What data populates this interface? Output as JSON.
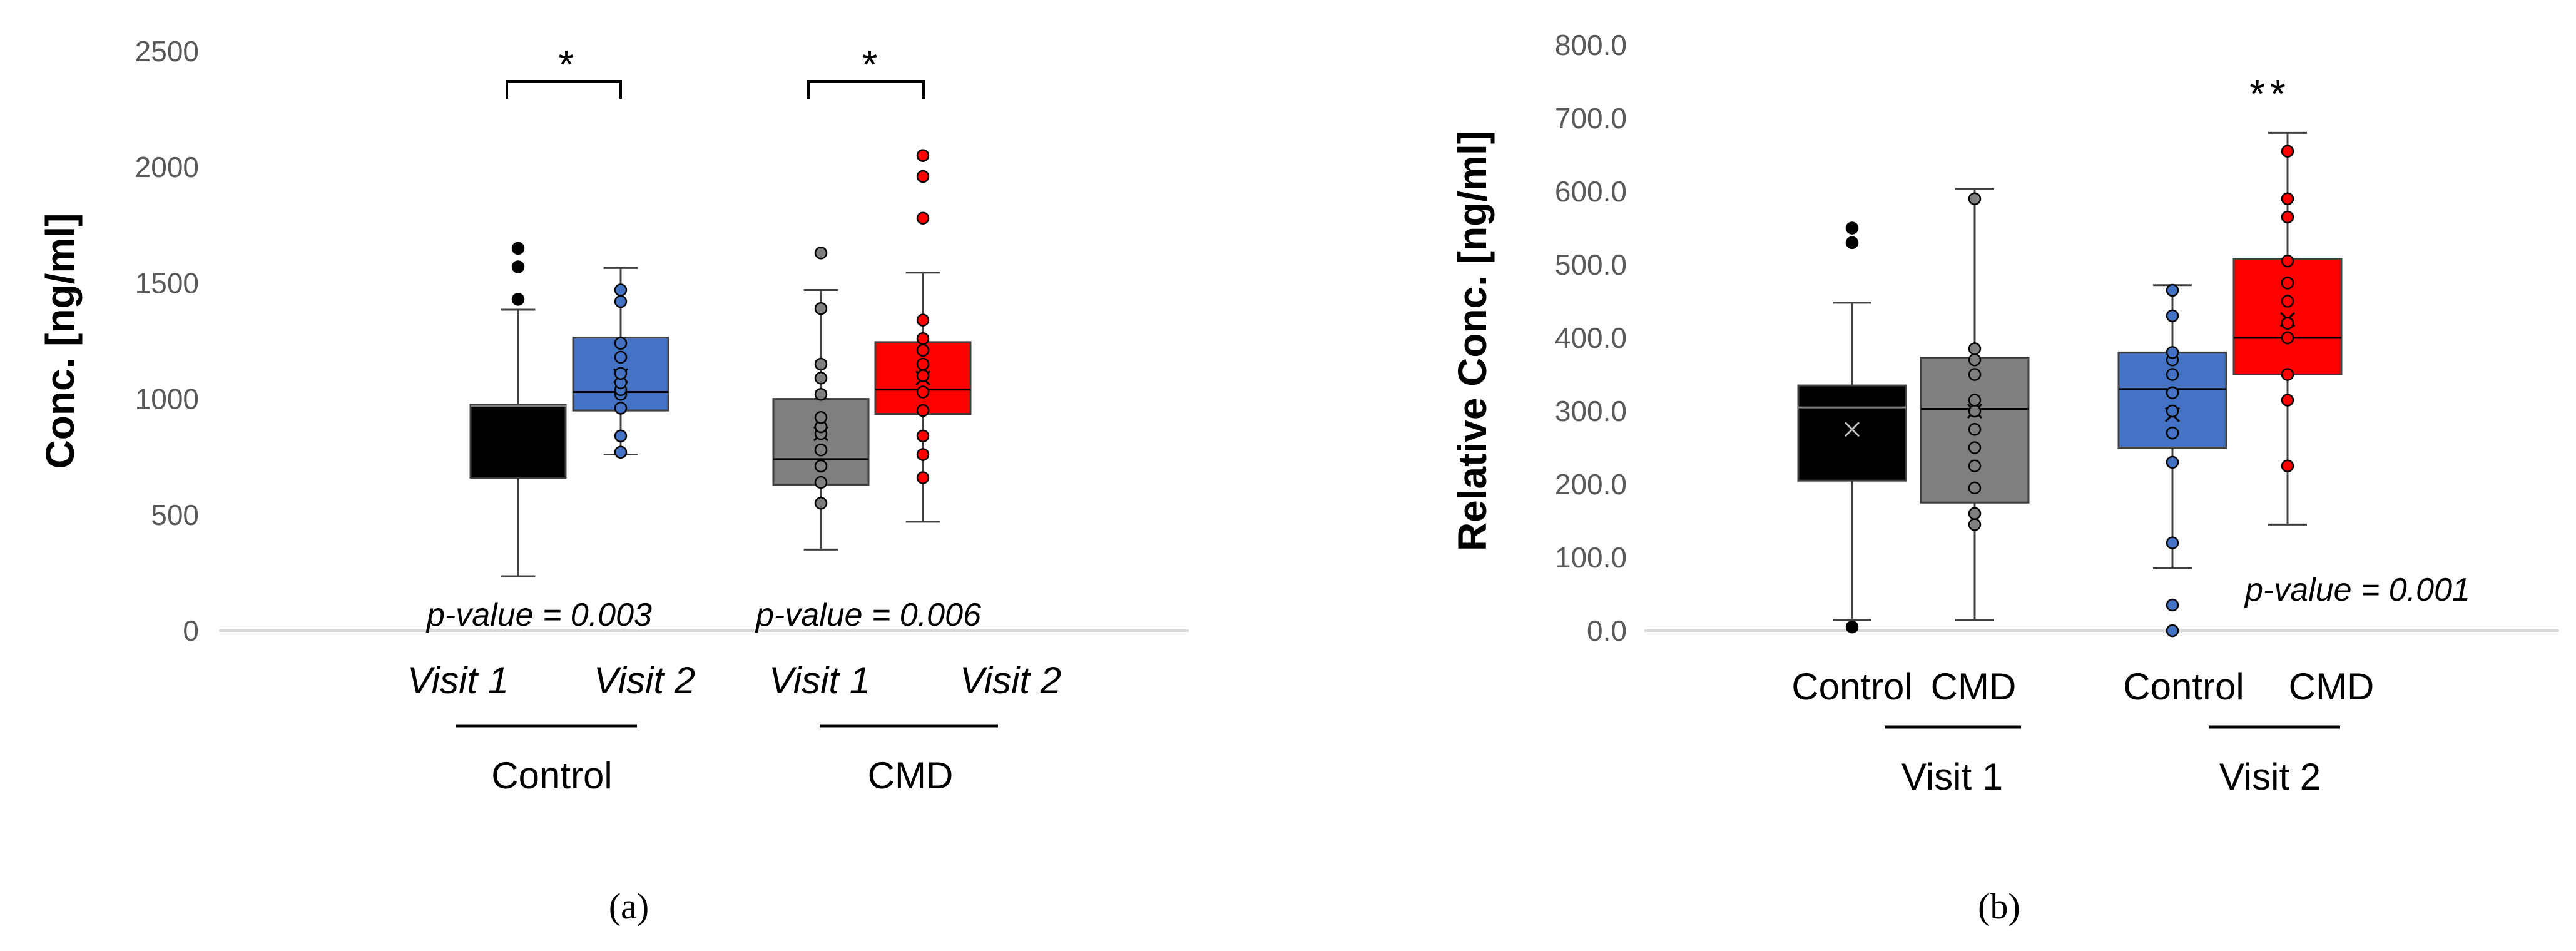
{
  "chart_data": [
    {
      "type": "box",
      "panel_label": "(a)",
      "ylabel": "Conc. [ng/ml]",
      "ylim": [
        0,
        2500
      ],
      "yticks": [
        "0",
        "500",
        "1000",
        "1500",
        "2000",
        "2500"
      ],
      "p_values": [
        "p-value = 0.003",
        "p-value = 0.006"
      ],
      "significance": [
        "*",
        "*"
      ],
      "groups": [
        {
          "label": "Control",
          "categories": [
            "Visit 1",
            "Visit 2"
          ]
        },
        {
          "label": "CMD",
          "categories": [
            "Visit 1",
            "Visit 2"
          ]
        }
      ],
      "series": [
        {
          "name": "Control Visit 1",
          "color": "#000000",
          "min": 235,
          "q1": 660,
          "median": 970,
          "q3": 975,
          "max": 1385,
          "mean": null,
          "outliers": [
            1430,
            1570,
            1650
          ],
          "points": []
        },
        {
          "name": "Control Visit 2",
          "color": "#4472C4",
          "min": 760,
          "q1": 950,
          "median": 1030,
          "q3": 1265,
          "max": 1565,
          "mean": 1100,
          "outliers": [],
          "points": [
            770,
            840,
            960,
            1020,
            1040,
            1070,
            1110,
            1180,
            1240,
            1420,
            1470
          ]
        },
        {
          "name": "CMD Visit 1",
          "color": "#7F7F7F",
          "min": 350,
          "q1": 630,
          "median": 740,
          "q3": 1000,
          "max": 1470,
          "mean": 850,
          "outliers": [
            1630
          ],
          "points": [
            550,
            640,
            710,
            780,
            850,
            880,
            920,
            1020,
            1090,
            1150,
            1390
          ]
        },
        {
          "name": "CMD Visit 2",
          "color": "#FF0000",
          "min": 470,
          "q1": 935,
          "median": 1040,
          "q3": 1245,
          "max": 1545,
          "mean": 1090,
          "outliers": [
            1780,
            1960,
            2050
          ],
          "points": [
            660,
            760,
            840,
            950,
            1030,
            1100,
            1150,
            1210,
            1260,
            1340
          ]
        }
      ]
    },
    {
      "type": "box",
      "panel_label": "(b)",
      "ylabel": "Relative Conc. [ng/ml]",
      "ylim": [
        0,
        800
      ],
      "yticks": [
        "0.0",
        "100.0",
        "200.0",
        "300.0",
        "400.0",
        "500.0",
        "600.0",
        "700.0",
        "800.0"
      ],
      "p_values": [
        "p-value = 0.001"
      ],
      "significance": [
        "**"
      ],
      "groups": [
        {
          "label": "Visit 1",
          "categories": [
            "Control",
            "CMD"
          ]
        },
        {
          "label": "Visit 2",
          "categories": [
            "Control",
            "CMD"
          ]
        }
      ],
      "series": [
        {
          "name": "Visit 1 Control",
          "color": "#000000",
          "min": 15,
          "q1": 205,
          "median": 305,
          "q3": 335,
          "max": 448,
          "mean": 275,
          "outliers": [
            5,
            530,
            550
          ],
          "points": []
        },
        {
          "name": "Visit 1 CMD",
          "color": "#7F7F7F",
          "min": 15,
          "q1": 175,
          "median": 303,
          "q3": 373,
          "max": 603,
          "mean": 300,
          "outliers": [],
          "points": [
            145,
            160,
            195,
            225,
            250,
            275,
            300,
            315,
            350,
            370,
            385,
            590
          ]
        },
        {
          "name": "Visit 2 Control",
          "color": "#4472C4",
          "min": 85,
          "q1": 250,
          "median": 330,
          "q3": 380,
          "max": 472,
          "mean": 295,
          "outliers": [
            0,
            35,
            120
          ],
          "points": [
            230,
            270,
            300,
            325,
            350,
            370,
            380,
            430,
            465
          ]
        },
        {
          "name": "Visit 2 CMD",
          "color": "#FF0000",
          "min": 145,
          "q1": 350,
          "median": 400,
          "q3": 508,
          "max": 680,
          "mean": 425,
          "outliers": [],
          "points": [
            225,
            315,
            350,
            400,
            420,
            450,
            475,
            505,
            565,
            590,
            655
          ]
        }
      ]
    }
  ]
}
